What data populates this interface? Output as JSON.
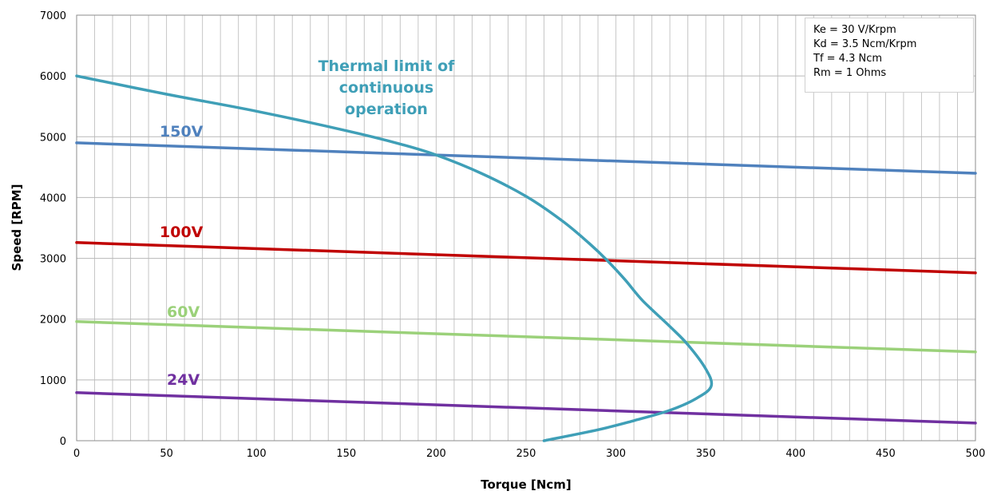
{
  "chart_data": {
    "type": "line",
    "title": "",
    "xlabel": "Torque [Ncm]",
    "ylabel": "Speed [RPM]",
    "xlim": [
      0,
      500
    ],
    "ylim": [
      0,
      7000
    ],
    "x_ticks": [
      "0",
      "50",
      "100",
      "150",
      "200",
      "250",
      "300",
      "350",
      "400",
      "450",
      "500"
    ],
    "y_ticks": [
      "0",
      "1000",
      "2000",
      "3000",
      "4000",
      "5000",
      "6000",
      "7000"
    ],
    "grid": true,
    "legend": "none",
    "series": [
      {
        "name": "150V",
        "color": "#4F81BD",
        "points": [
          [
            0,
            4900
          ],
          [
            500,
            4400
          ]
        ]
      },
      {
        "name": "100V",
        "color": "#C00000",
        "points": [
          [
            0,
            3260
          ],
          [
            500,
            2760
          ]
        ]
      },
      {
        "name": "60V",
        "color": "#9BD17A",
        "points": [
          [
            0,
            1960
          ],
          [
            500,
            1460
          ]
        ]
      },
      {
        "name": "24V",
        "color": "#7030A0",
        "points": [
          [
            0,
            790
          ],
          [
            500,
            290
          ]
        ]
      },
      {
        "name": "Thermal limit of continuous operation",
        "color": "#3F9FB7",
        "points": [
          [
            0,
            6000
          ],
          [
            50,
            5700
          ],
          [
            100,
            5420
          ],
          [
            150,
            5100
          ],
          [
            180,
            4880
          ],
          [
            200,
            4700
          ],
          [
            225,
            4400
          ],
          [
            250,
            4020
          ],
          [
            270,
            3620
          ],
          [
            285,
            3250
          ],
          [
            295,
            2970
          ],
          [
            305,
            2650
          ],
          [
            315,
            2300
          ],
          [
            330,
            1880
          ],
          [
            340,
            1580
          ],
          [
            350,
            1180
          ],
          [
            353,
            900
          ],
          [
            345,
            700
          ],
          [
            330,
            500
          ],
          [
            310,
            330
          ],
          [
            290,
            180
          ],
          [
            260,
            0
          ]
        ]
      }
    ],
    "annotations": {
      "thermal_label": [
        "Thermal limit of",
        "continuous",
        "operation"
      ],
      "params": [
        "Ke = 30 V/Krpm",
        "Kd = 3.5 Ncm/Krpm",
        "Tf = 4.3 Ncm",
        "Rm = 1 Ohms"
      ]
    }
  }
}
